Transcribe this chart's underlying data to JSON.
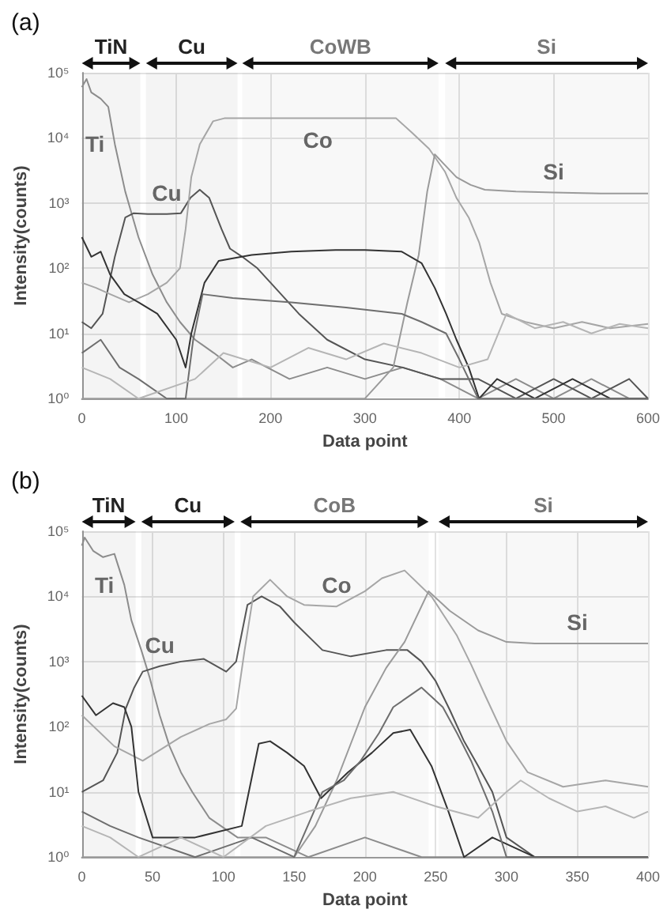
{
  "chart_data": [
    {
      "type": "line",
      "title": "(a)",
      "xlabel": "Data point",
      "ylabel": "Intensity(counts)",
      "log": "y",
      "grid": true,
      "marker": "none",
      "line_style": "solid",
      "xlim": [
        0,
        600
      ],
      "xticks": [
        0,
        100,
        200,
        300,
        400,
        500,
        600
      ],
      "ylim": [
        1,
        100000
      ],
      "yticks": [
        {
          "value": 1,
          "label": "10⁰"
        },
        {
          "value": 10,
          "label": "10¹"
        },
        {
          "value": 100,
          "label": "10²"
        },
        {
          "value": 1000,
          "label": "10³"
        },
        {
          "value": 10000,
          "label": "10⁴"
        },
        {
          "value": 100000,
          "label": "10⁵"
        }
      ],
      "bands": [
        {
          "axis": "x",
          "from": 0,
          "to": 62,
          "label": "TiN",
          "color": "#222222"
        },
        {
          "axis": "x",
          "from": 68,
          "to": 165,
          "label": "Cu",
          "color": "#222222"
        },
        {
          "axis": "x",
          "from": 170,
          "to": 378,
          "label": "CoWB",
          "color": "#777777"
        },
        {
          "axis": "x",
          "from": 385,
          "to": 600,
          "label": "Si",
          "color": "#777777"
        }
      ],
      "annotations": [
        {
          "text": "Ti",
          "x": 35,
          "y": 8000
        },
        {
          "text": "Cu",
          "x": 90,
          "y": 680
        },
        {
          "text": "Co",
          "x": 250,
          "y": 20000
        },
        {
          "text": "Si",
          "x": 500,
          "y": 1450
        }
      ],
      "series": [
        {
          "color": "#8c8c8c",
          "x": [
            0,
            5,
            10,
            20,
            28,
            35,
            46,
            60,
            75,
            90,
            104,
            120,
            140,
            160,
            180,
            220,
            260,
            300,
            340,
            380,
            420,
            460,
            500,
            540,
            580,
            600
          ],
          "values": [
            60000,
            80000,
            50000,
            40000,
            30000,
            8000,
            1500,
            300,
            80,
            30,
            15,
            8,
            5,
            3,
            4,
            2,
            3,
            2,
            3,
            2,
            1,
            2,
            1,
            2,
            1,
            1
          ]
        },
        {
          "color": "#555555",
          "x": [
            0,
            10,
            22,
            35,
            46,
            55,
            70,
            90,
            105,
            115,
            125,
            135,
            148,
            157,
            170,
            186,
            200,
            230,
            260,
            300,
            340,
            380,
            420,
            460,
            500,
            540,
            580,
            600
          ],
          "values": [
            15,
            12,
            20,
            150,
            600,
            700,
            680,
            680,
            700,
            1200,
            1600,
            1200,
            400,
            200,
            150,
            100,
            60,
            20,
            8,
            4,
            3,
            2,
            2,
            1,
            2,
            1,
            2,
            1
          ]
        },
        {
          "color": "#a6a6a6",
          "x": [
            0,
            15,
            30,
            50,
            70,
            90,
            104,
            110,
            116,
            125,
            139,
            151,
            200,
            250,
            300,
            333,
            350,
            368,
            385,
            397,
            410,
            421,
            433,
            445,
            470,
            500,
            530,
            560,
            600
          ],
          "values": [
            60,
            50,
            40,
            30,
            40,
            60,
            100,
            400,
            2500,
            8000,
            18000,
            20000,
            20000,
            20000,
            20000,
            20000,
            12000,
            6800,
            3000,
            1200,
            600,
            250,
            60,
            20,
            15,
            12,
            15,
            12,
            14
          ]
        },
        {
          "color": "#9a9a9a",
          "x": [
            0,
            100,
            200,
            300,
            330,
            345,
            357,
            366,
            374,
            385,
            397,
            412,
            427,
            460,
            500,
            550,
            600
          ],
          "values": [
            1,
            1,
            1,
            1,
            3,
            30,
            160,
            1500,
            5600,
            3800,
            2500,
            1900,
            1600,
            1500,
            1450,
            1400,
            1400
          ]
        },
        {
          "color": "#333333",
          "x": [
            0,
            10,
            20,
            30,
            45,
            60,
            80,
            100,
            110,
            116,
            130,
            145,
            180,
            222,
            269,
            300,
            339,
            360,
            374,
            386,
            397,
            410,
            421,
            440,
            480,
            520,
            560,
            600
          ],
          "values": [
            300,
            150,
            180,
            80,
            40,
            30,
            20,
            8,
            3,
            10,
            60,
            130,
            160,
            180,
            190,
            190,
            180,
            120,
            50,
            20,
            8,
            3,
            1,
            2,
            1,
            2,
            1,
            1
          ]
        },
        {
          "color": "#6e6e6e",
          "x": [
            0,
            20,
            40,
            60,
            90,
            110,
            118,
            128,
            160,
            222,
            280,
            339,
            360,
            386,
            400,
            420,
            440,
            470,
            510,
            550,
            600
          ],
          "values": [
            5,
            8,
            3,
            2,
            1,
            1,
            8,
            40,
            35,
            30,
            25,
            20,
            15,
            10,
            4,
            1,
            1,
            1,
            1,
            1,
            1
          ]
        },
        {
          "color": "#b5b5b5",
          "x": [
            0,
            30,
            60,
            120,
            150,
            200,
            240,
            280,
            320,
            360,
            400,
            430,
            450,
            480,
            510,
            540,
            570,
            600
          ],
          "values": [
            3,
            2,
            1,
            2,
            5,
            3,
            6,
            4,
            7,
            5,
            3,
            4,
            20,
            12,
            15,
            10,
            14,
            12
          ]
        }
      ]
    },
    {
      "type": "line",
      "title": "(b)",
      "xlabel": "Data point",
      "ylabel": "Intensity(counts)",
      "log": "y",
      "grid": true,
      "marker": "none",
      "line_style": "solid",
      "xlim": [
        0,
        400
      ],
      "xticks": [
        0,
        50,
        100,
        150,
        200,
        250,
        300,
        350,
        400
      ],
      "ylim": [
        1,
        100000
      ],
      "yticks": [
        {
          "value": 1,
          "label": "10⁰"
        },
        {
          "value": 10,
          "label": "10¹"
        },
        {
          "value": 100,
          "label": "10²"
        },
        {
          "value": 1000,
          "label": "10³"
        },
        {
          "value": 10000,
          "label": "10⁴"
        },
        {
          "value": 100000,
          "label": "10⁵"
        }
      ],
      "bands": [
        {
          "axis": "x",
          "from": 0,
          "to": 38,
          "label": "TiN",
          "color": "#222222"
        },
        {
          "axis": "x",
          "from": 42,
          "to": 108,
          "label": "Cu",
          "color": "#222222"
        },
        {
          "axis": "x",
          "from": 112,
          "to": 245,
          "label": "CoB",
          "color": "#777777"
        },
        {
          "axis": "x",
          "from": 252,
          "to": 400,
          "label": "Si",
          "color": "#777777"
        }
      ],
      "annotations": [
        {
          "text": "Ti",
          "x": 30,
          "y": 15000
        },
        {
          "text": "Cu",
          "x": 55,
          "y": 850
        },
        {
          "text": "Co",
          "x": 180,
          "y": 7000
        },
        {
          "text": "Si",
          "x": 350,
          "y": 1900
        }
      ],
      "series": [
        {
          "color": "#8c8c8c",
          "x": [
            0,
            2,
            8,
            15,
            23,
            30,
            35,
            42,
            48,
            55,
            62,
            70,
            78,
            90,
            110,
            130,
            160,
            200,
            240,
            280,
            320,
            360,
            400
          ],
          "values": [
            60000,
            80000,
            50000,
            40000,
            45000,
            15000,
            4300,
            1500,
            560,
            150,
            50,
            20,
            10,
            4,
            2,
            2,
            1,
            2,
            1,
            1,
            1,
            1,
            1
          ]
        },
        {
          "color": "#555555",
          "x": [
            0,
            15,
            25,
            31,
            37,
            43,
            55,
            70,
            86,
            102,
            109,
            117,
            127,
            140,
            150,
            170,
            190,
            215,
            230,
            240,
            250,
            260,
            270,
            280,
            290,
            300,
            320,
            360,
            400
          ],
          "values": [
            10,
            15,
            40,
            190,
            400,
            700,
            850,
            1000,
            1100,
            700,
            1000,
            7400,
            10000,
            7000,
            4000,
            1500,
            1200,
            1500,
            1500,
            1000,
            500,
            180,
            60,
            25,
            10,
            2,
            1,
            1,
            1
          ]
        },
        {
          "color": "#a6a6a6",
          "x": [
            0,
            23,
            43,
            70,
            90,
            102,
            109,
            115,
            121,
            133,
            145,
            157,
            180,
            200,
            212,
            228,
            247,
            256,
            265,
            275,
            285,
            300,
            315,
            340,
            370,
            400
          ],
          "values": [
            150,
            50,
            30,
            70,
            110,
            130,
            190,
            1500,
            10000,
            18000,
            10000,
            7400,
            7000,
            12000,
            19000,
            25000,
            10000,
            5000,
            2500,
            900,
            300,
            60,
            20,
            12,
            15,
            12
          ]
        },
        {
          "color": "#9a9a9a",
          "x": [
            0,
            100,
            150,
            165,
            180,
            200,
            215,
            228,
            245,
            260,
            280,
            300,
            320,
            350,
            400
          ],
          "values": [
            1,
            1,
            1,
            3,
            15,
            200,
            800,
            2000,
            12000,
            6000,
            3000,
            2000,
            1900,
            1900,
            1900
          ]
        },
        {
          "color": "#333333",
          "x": [
            0,
            10,
            22,
            30,
            35,
            40,
            50,
            80,
            113,
            125,
            133,
            145,
            157,
            169,
            188,
            205,
            220,
            232,
            247,
            259,
            270,
            290,
            320,
            360,
            400
          ],
          "values": [
            300,
            150,
            230,
            200,
            100,
            10,
            2,
            2,
            3,
            55,
            60,
            40,
            25,
            8,
            20,
            40,
            80,
            90,
            25,
            5,
            1,
            2,
            1,
            1,
            1
          ]
        },
        {
          "color": "#6e6e6e",
          "x": [
            0,
            20,
            40,
            80,
            120,
            150,
            170,
            185,
            197,
            210,
            220,
            240,
            255,
            265,
            275,
            290,
            300,
            340,
            400
          ],
          "values": [
            5,
            3,
            2,
            1,
            2,
            1,
            10,
            15,
            30,
            80,
            200,
            400,
            200,
            80,
            30,
            5,
            1,
            1,
            1
          ]
        },
        {
          "color": "#b5b5b5",
          "x": [
            0,
            20,
            40,
            70,
            100,
            130,
            160,
            190,
            220,
            250,
            280,
            300,
            310,
            330,
            350,
            370,
            390,
            400
          ],
          "values": [
            3,
            2,
            1,
            2,
            1,
            3,
            5,
            8,
            10,
            6,
            4,
            10,
            15,
            8,
            5,
            6,
            4,
            5
          ]
        }
      ]
    }
  ]
}
